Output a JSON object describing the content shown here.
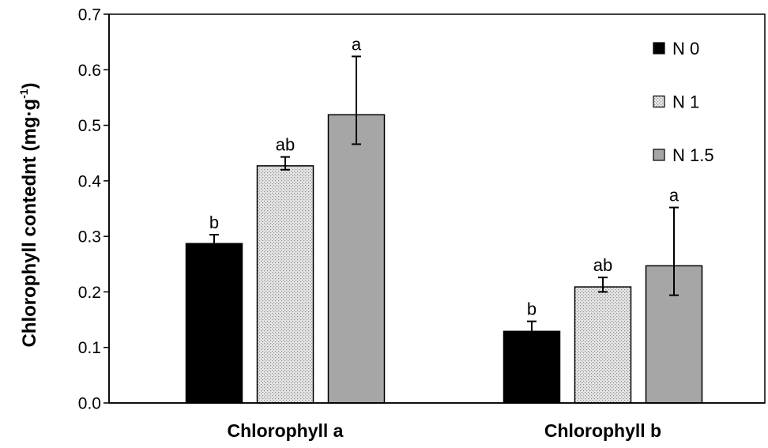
{
  "chart_data": {
    "type": "bar",
    "title": "",
    "xlabel": "",
    "ylabel_main": "Chlorophyll contednt (mg·g",
    "ylabel_sup": "-1",
    "ylabel_end": ")",
    "ylim": [
      0,
      0.7
    ],
    "yticks": [
      "0.0",
      "0.1",
      "0.2",
      "0.3",
      "0.4",
      "0.5",
      "0.6",
      "0.7"
    ],
    "grid": false,
    "legend_position": "top-right",
    "categories": [
      "Chlorophyll a",
      "Chlorophyll b"
    ],
    "series": [
      {
        "name": "N 0",
        "values": [
          0.287,
          0.129
        ],
        "err_plus": [
          0.016,
          0.018
        ],
        "err_minus": [
          0.008,
          0.009
        ],
        "letters": [
          "b",
          "b"
        ],
        "fill": "#000000",
        "pattern": "solid"
      },
      {
        "name": "N 1",
        "values": [
          0.427,
          0.209
        ],
        "err_plus": [
          0.016,
          0.017
        ],
        "err_minus": [
          0.007,
          0.009
        ],
        "letters": [
          "ab",
          "ab"
        ],
        "fill": "#e6e6e6",
        "dot_color": "#8a8a8a",
        "pattern": "dotted"
      },
      {
        "name": "N 1.5",
        "values": [
          0.519,
          0.247
        ],
        "err_plus": [
          0.105,
          0.105
        ],
        "err_minus": [
          0.053,
          0.053
        ],
        "letters": [
          "a",
          "a"
        ],
        "fill": "#a6a6a6",
        "pattern": "solid"
      }
    ],
    "colors": {
      "axis": "#000000",
      "background": "#ffffff"
    }
  }
}
